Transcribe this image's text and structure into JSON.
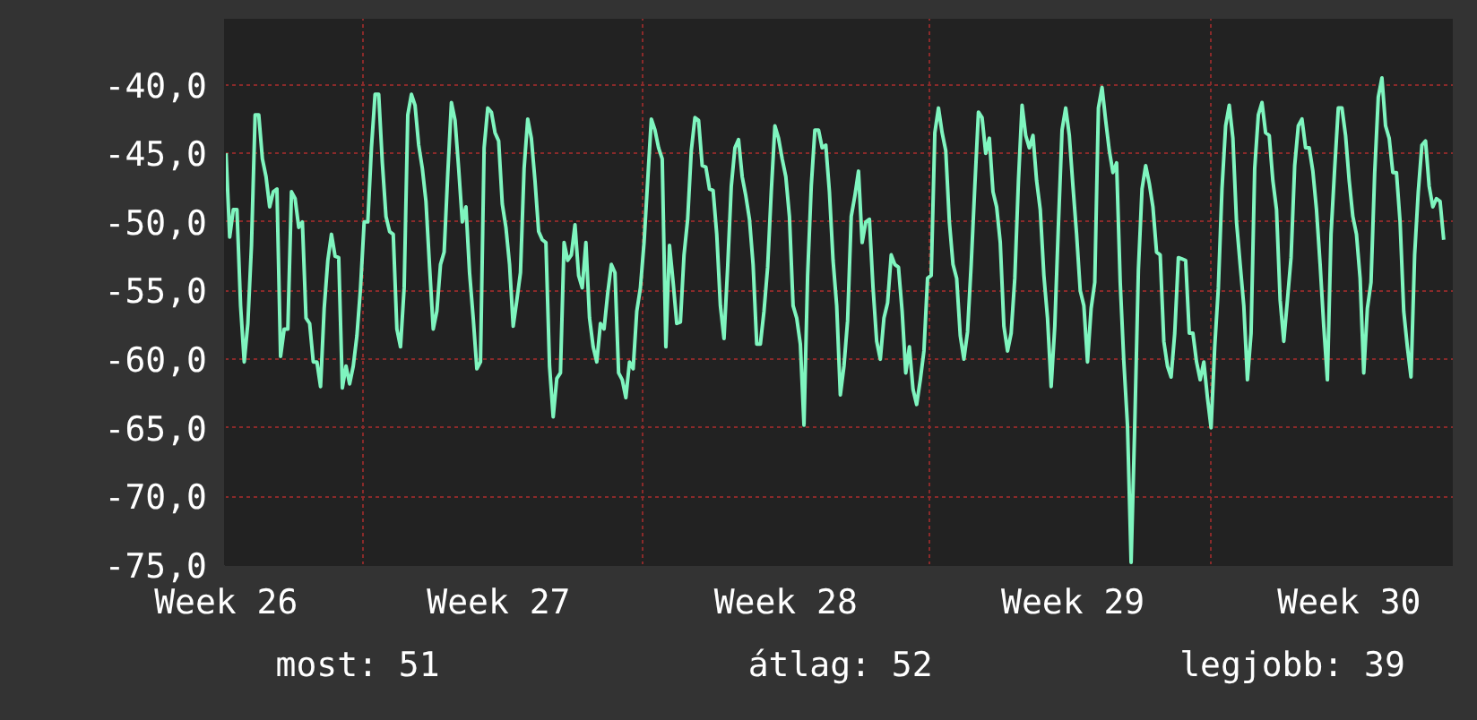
{
  "chart_data": {
    "type": "line",
    "categories": [
      "Week 26",
      null,
      null,
      null,
      null,
      null,
      null,
      null,
      null,
      null,
      null,
      null,
      null,
      null,
      null,
      null,
      null,
      null,
      null,
      null,
      null,
      null,
      null,
      null,
      null,
      null,
      null,
      null,
      null,
      null,
      null,
      null,
      null,
      null,
      null,
      null,
      null,
      null,
      null,
      null,
      null,
      null,
      null,
      null,
      null,
      null,
      null,
      null,
      null,
      null,
      null,
      null,
      null,
      null,
      null,
      null,
      null,
      null,
      null,
      null,
      null,
      null,
      null,
      null,
      null,
      null,
      null,
      null,
      null,
      null,
      null,
      null,
      null,
      null,
      null,
      "Week 27",
      null,
      null,
      null,
      null,
      null,
      null,
      null,
      null,
      null,
      null,
      null,
      null,
      null,
      null,
      null,
      null,
      null,
      null,
      null,
      null,
      null,
      null,
      null,
      null,
      null,
      null,
      null,
      null,
      null,
      null,
      null,
      null,
      null,
      null,
      null,
      null,
      null,
      null,
      null,
      null,
      null,
      null,
      null,
      null,
      null,
      null,
      null,
      null,
      null,
      null,
      null,
      null,
      null,
      null,
      null,
      null,
      null,
      null,
      null,
      null,
      null,
      null,
      null,
      null,
      null,
      null,
      null,
      null,
      null,
      null,
      null,
      null,
      null,
      null,
      null,
      null,
      null,
      null,
      "Week 28",
      null,
      null,
      null,
      null,
      null,
      null,
      null,
      null,
      null,
      null,
      null,
      null,
      null,
      null,
      null,
      null,
      null,
      null,
      null,
      null,
      null,
      null,
      null,
      null,
      null,
      null,
      null,
      null,
      null,
      null,
      null,
      null,
      null,
      null,
      null,
      null,
      null,
      null,
      null,
      null,
      null,
      null,
      null,
      null,
      null,
      null,
      null,
      null,
      null,
      null,
      null,
      null,
      null,
      null,
      null,
      null,
      null,
      null,
      null,
      null,
      null,
      null,
      null,
      null,
      null,
      null,
      null,
      null,
      null,
      null,
      null,
      null,
      null,
      null,
      null,
      null,
      null,
      null,
      "Week 29",
      null,
      null,
      null,
      null,
      null,
      null,
      null,
      null,
      null,
      null,
      null,
      null,
      null,
      null,
      null,
      null,
      null,
      null,
      null,
      null,
      null,
      null,
      null,
      null,
      null,
      null,
      null,
      null,
      null,
      null,
      null,
      null,
      null,
      null,
      null,
      null,
      null,
      null,
      null,
      null,
      null,
      null,
      null,
      null,
      null,
      null,
      null,
      null,
      null,
      null,
      null,
      null,
      null,
      null,
      null,
      null,
      null,
      null,
      null,
      null,
      null,
      null,
      null,
      null,
      null,
      null,
      null,
      null,
      null,
      null,
      null,
      null,
      null,
      null,
      null,
      "Week 30",
      null,
      null,
      null,
      null,
      null,
      null,
      null,
      null,
      null,
      null,
      null,
      null,
      null,
      null,
      null,
      null,
      null,
      null,
      null,
      null,
      null,
      null,
      null,
      null,
      null,
      null
    ],
    "series": [
      {
        "color": "#7ff5bf",
        "values": [
          -45.0,
          -51.1,
          -49.1,
          -49.1,
          -56.1,
          -60.2,
          -57.4,
          -51.7,
          -42.2,
          -42.2,
          -45.4,
          -46.7,
          -48.9,
          -47.8,
          -47.6,
          -59.8,
          -57.8,
          -57.8,
          -47.8,
          -48.3,
          -50.4,
          -50.0,
          -57.0,
          -57.4,
          -60.2,
          -60.2,
          -62.0,
          -56.3,
          -52.8,
          -50.9,
          -52.5,
          -52.6,
          -62.1,
          -60.5,
          -61.8,
          -60.5,
          -58.3,
          -54.8,
          -50.0,
          -50.0,
          -44.6,
          -40.7,
          -40.7,
          -45.7,
          -49.6,
          -50.7,
          -50.9,
          -57.8,
          -59.1,
          -54.8,
          -42.2,
          -40.7,
          -41.5,
          -44.4,
          -46.1,
          -48.5,
          -53.3,
          -57.8,
          -56.5,
          -53.1,
          -52.2,
          -46.5,
          -41.3,
          -42.6,
          -46.1,
          -50.0,
          -48.9,
          -53.7,
          -57.0,
          -60.7,
          -60.2,
          -44.6,
          -41.7,
          -42.0,
          -43.5,
          -44.1,
          -48.7,
          -50.4,
          -53.1,
          -57.6,
          -55.7,
          -53.7,
          -46.1,
          -42.5,
          -43.9,
          -47.0,
          -50.7,
          -51.3,
          -51.5,
          -60.5,
          -64.2,
          -61.4,
          -61.0,
          -51.5,
          -52.8,
          -52.4,
          -50.2,
          -53.9,
          -54.8,
          -51.5,
          -57.0,
          -59.1,
          -60.2,
          -57.4,
          -57.8,
          -55.2,
          -53.1,
          -53.7,
          -61.0,
          -61.5,
          -62.8,
          -60.2,
          -60.7,
          -56.5,
          -54.8,
          -51.5,
          -47.0,
          -42.5,
          -43.3,
          -44.6,
          -45.4,
          -59.1,
          -51.7,
          -54.4,
          -57.4,
          -57.3,
          -52.4,
          -49.8,
          -44.8,
          -42.4,
          -42.6,
          -45.9,
          -46.0,
          -47.6,
          -47.7,
          -50.9,
          -56.1,
          -58.5,
          -53.3,
          -47.4,
          -44.6,
          -44.0,
          -46.7,
          -48.1,
          -49.8,
          -53.1,
          -58.9,
          -58.9,
          -56.5,
          -53.3,
          -47.8,
          -43.0,
          -43.9,
          -45.4,
          -46.7,
          -49.6,
          -56.1,
          -57.0,
          -58.9,
          -64.8,
          -53.9,
          -47.4,
          -43.3,
          -43.3,
          -44.6,
          -44.4,
          -47.8,
          -52.8,
          -56.1,
          -62.6,
          -60.5,
          -57.2,
          -49.6,
          -48.1,
          -46.3,
          -51.5,
          -50.0,
          -49.8,
          -54.8,
          -58.7,
          -60.0,
          -57.0,
          -55.9,
          -52.4,
          -53.1,
          -53.3,
          -56.5,
          -61.0,
          -59.1,
          -62.2,
          -63.3,
          -61.5,
          -59.4,
          -54.1,
          -53.9,
          -43.5,
          -41.7,
          -43.5,
          -44.8,
          -50.0,
          -53.1,
          -54.1,
          -58.3,
          -60.0,
          -58.0,
          -53.1,
          -47.4,
          -42.0,
          -42.4,
          -45.0,
          -43.9,
          -47.8,
          -48.9,
          -51.5,
          -57.6,
          -59.4,
          -58.1,
          -54.1,
          -47.0,
          -41.5,
          -43.7,
          -44.6,
          -43.7,
          -47.0,
          -49.1,
          -53.9,
          -57.0,
          -62.0,
          -57.6,
          -50.2,
          -43.3,
          -41.7,
          -43.7,
          -47.4,
          -50.9,
          -55.0,
          -56.1,
          -60.2,
          -56.3,
          -54.4,
          -41.7,
          -40.2,
          -42.6,
          -44.8,
          -46.4,
          -45.7,
          -54.4,
          -60.2,
          -64.8,
          -74.8,
          -64.8,
          -53.5,
          -47.6,
          -45.9,
          -47.2,
          -48.9,
          -52.2,
          -52.4,
          -58.7,
          -60.5,
          -61.3,
          -58.1,
          -52.6,
          -52.7,
          -52.8,
          -58.1,
          -58.1,
          -60.2,
          -61.5,
          -60.2,
          -62.8,
          -65.0,
          -59.1,
          -54.8,
          -47.6,
          -43.0,
          -41.5,
          -43.9,
          -50.0,
          -53.1,
          -56.1,
          -61.5,
          -58.1,
          -46.1,
          -42.2,
          -41.3,
          -43.5,
          -43.7,
          -47.0,
          -49.1,
          -55.7,
          -58.7,
          -55.7,
          -52.6,
          -45.9,
          -43.0,
          -42.5,
          -44.6,
          -44.6,
          -46.3,
          -49.1,
          -53.1,
          -57.6,
          -61.5,
          -50.9,
          -46.1,
          -41.7,
          -41.7,
          -43.7,
          -47.0,
          -49.6,
          -50.9,
          -54.1,
          -61.0,
          -56.3,
          -54.4,
          -46.5,
          -40.9,
          -39.5,
          -43.0,
          -43.9,
          -46.4,
          -46.4,
          -50.0,
          -56.5,
          -59.1,
          -61.3,
          -52.4,
          -47.8,
          -44.4,
          -44.1,
          -47.4,
          -48.9,
          -48.3,
          -48.5,
          -51.3
        ]
      }
    ],
    "ylim": [
      -75,
      -35.2
    ],
    "yticks": [
      {
        "value": -75,
        "label": "-75,0"
      },
      {
        "value": -70,
        "label": "-70,0"
      },
      {
        "value": -65,
        "label": "-65,0"
      },
      {
        "value": -60,
        "label": "-60,0"
      },
      {
        "value": -55,
        "label": "-55,0"
      },
      {
        "value": -50,
        "label": "-50,0"
      },
      {
        "value": -45,
        "label": "-45,0"
      },
      {
        "value": -40,
        "label": "-40,0"
      }
    ],
    "grid": true,
    "line_style": "solid",
    "marker": "none",
    "annotations": [
      "most: 51",
      "átlag: 52",
      "legjobb: 39"
    ]
  }
}
